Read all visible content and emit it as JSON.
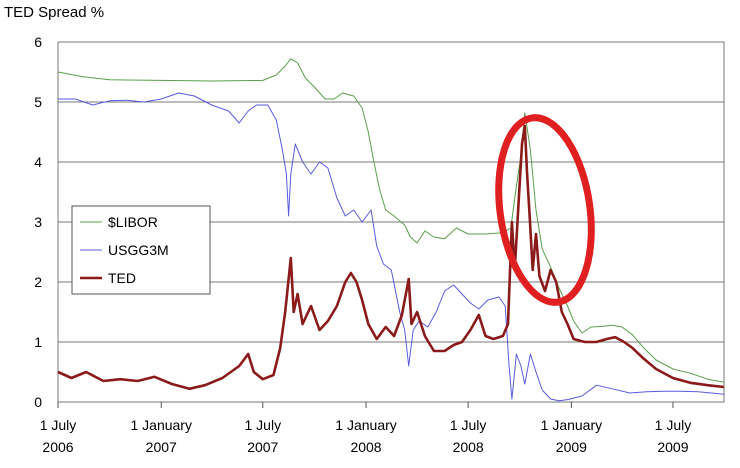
{
  "chart_data": {
    "type": "line",
    "title": "TED Spread %",
    "xlabel": "",
    "ylabel": "",
    "ylim": [
      0,
      6
    ],
    "xlim": [
      "2006-07-01",
      "2009-09-30"
    ],
    "yticks": [
      "0",
      "1",
      "2",
      "3",
      "4",
      "5",
      "6"
    ],
    "xticks": [
      {
        "date": "2006-07-01",
        "line1": "1 July",
        "line2": "2006"
      },
      {
        "date": "2007-01-01",
        "line1": "1 January",
        "line2": "2007"
      },
      {
        "date": "2007-07-01",
        "line1": "1 July",
        "line2": "2007"
      },
      {
        "date": "2008-01-01",
        "line1": "1 January",
        "line2": "2008"
      },
      {
        "date": "2008-07-01",
        "line1": "1 July",
        "line2": "2008"
      },
      {
        "date": "2009-01-01",
        "line1": "1 January",
        "line2": "2009"
      },
      {
        "date": "2009-07-01",
        "line1": "1 July",
        "line2": "2009"
      }
    ],
    "grid": true,
    "legend_position": "left",
    "series": [
      {
        "name": "$LIBOR",
        "color": "#5a9e4b",
        "points": [
          [
            "2006-07-01",
            5.5
          ],
          [
            "2006-08-15",
            5.42
          ],
          [
            "2006-10-01",
            5.37
          ],
          [
            "2007-01-01",
            5.36
          ],
          [
            "2007-04-01",
            5.35
          ],
          [
            "2007-07-01",
            5.36
          ],
          [
            "2007-07-25",
            5.45
          ],
          [
            "2007-08-10",
            5.6
          ],
          [
            "2007-08-20",
            5.72
          ],
          [
            "2007-09-01",
            5.65
          ],
          [
            "2007-09-15",
            5.4
          ],
          [
            "2007-10-01",
            5.25
          ],
          [
            "2007-10-20",
            5.05
          ],
          [
            "2007-11-05",
            5.05
          ],
          [
            "2007-11-20",
            5.15
          ],
          [
            "2007-12-10",
            5.1
          ],
          [
            "2007-12-25",
            4.9
          ],
          [
            "2008-01-05",
            4.5
          ],
          [
            "2008-01-15",
            4.0
          ],
          [
            "2008-01-25",
            3.55
          ],
          [
            "2008-02-05",
            3.2
          ],
          [
            "2008-02-20",
            3.1
          ],
          [
            "2008-03-10",
            2.95
          ],
          [
            "2008-03-20",
            2.75
          ],
          [
            "2008-04-01",
            2.65
          ],
          [
            "2008-04-15",
            2.85
          ],
          [
            "2008-05-01",
            2.75
          ],
          [
            "2008-05-20",
            2.72
          ],
          [
            "2008-06-10",
            2.9
          ],
          [
            "2008-07-01",
            2.8
          ],
          [
            "2008-08-01",
            2.8
          ],
          [
            "2008-09-01",
            2.82
          ],
          [
            "2008-09-15",
            2.9
          ],
          [
            "2008-09-25",
            3.6
          ],
          [
            "2008-10-03",
            4.1
          ],
          [
            "2008-10-10",
            4.82
          ],
          [
            "2008-10-20",
            4.2
          ],
          [
            "2008-10-30",
            3.2
          ],
          [
            "2008-11-10",
            2.55
          ],
          [
            "2008-11-25",
            2.25
          ],
          [
            "2008-12-10",
            1.9
          ],
          [
            "2008-12-25",
            1.6
          ],
          [
            "2009-01-05",
            1.35
          ],
          [
            "2009-01-20",
            1.15
          ],
          [
            "2009-02-05",
            1.25
          ],
          [
            "2009-02-25",
            1.26
          ],
          [
            "2009-03-15",
            1.28
          ],
          [
            "2009-04-01",
            1.25
          ],
          [
            "2009-04-20",
            1.12
          ],
          [
            "2009-05-10",
            0.9
          ],
          [
            "2009-06-01",
            0.7
          ],
          [
            "2009-07-01",
            0.55
          ],
          [
            "2009-08-01",
            0.48
          ],
          [
            "2009-09-01",
            0.38
          ],
          [
            "2009-09-30",
            0.33
          ]
        ]
      },
      {
        "name": "USGG3M",
        "color": "#5a5ae0",
        "points": [
          [
            "2006-07-01",
            5.05
          ],
          [
            "2006-08-01",
            5.05
          ],
          [
            "2006-09-01",
            4.95
          ],
          [
            "2006-10-01",
            5.02
          ],
          [
            "2006-11-01",
            5.03
          ],
          [
            "2006-12-01",
            5.0
          ],
          [
            "2007-01-01",
            5.05
          ],
          [
            "2007-02-01",
            5.15
          ],
          [
            "2007-03-01",
            5.1
          ],
          [
            "2007-04-01",
            4.95
          ],
          [
            "2007-05-01",
            4.85
          ],
          [
            "2007-05-20",
            4.65
          ],
          [
            "2007-06-05",
            4.85
          ],
          [
            "2007-06-20",
            4.95
          ],
          [
            "2007-07-10",
            4.95
          ],
          [
            "2007-07-25",
            4.7
          ],
          [
            "2007-08-05",
            4.2
          ],
          [
            "2007-08-12",
            3.8
          ],
          [
            "2007-08-16",
            3.1
          ],
          [
            "2007-08-20",
            3.8
          ],
          [
            "2007-08-28",
            4.3
          ],
          [
            "2007-09-10",
            4.0
          ],
          [
            "2007-09-25",
            3.8
          ],
          [
            "2007-10-10",
            4.0
          ],
          [
            "2007-10-25",
            3.9
          ],
          [
            "2007-11-10",
            3.4
          ],
          [
            "2007-11-25",
            3.1
          ],
          [
            "2007-12-10",
            3.2
          ],
          [
            "2007-12-25",
            3.0
          ],
          [
            "2008-01-10",
            3.2
          ],
          [
            "2008-01-20",
            2.6
          ],
          [
            "2008-02-01",
            2.3
          ],
          [
            "2008-02-15",
            2.2
          ],
          [
            "2008-03-01",
            1.5
          ],
          [
            "2008-03-10",
            1.2
          ],
          [
            "2008-03-17",
            0.6
          ],
          [
            "2008-03-25",
            1.2
          ],
          [
            "2008-04-05",
            1.35
          ],
          [
            "2008-04-20",
            1.25
          ],
          [
            "2008-05-05",
            1.5
          ],
          [
            "2008-05-20",
            1.85
          ],
          [
            "2008-06-05",
            1.95
          ],
          [
            "2008-06-20",
            1.8
          ],
          [
            "2008-07-05",
            1.65
          ],
          [
            "2008-07-20",
            1.55
          ],
          [
            "2008-08-05",
            1.7
          ],
          [
            "2008-08-25",
            1.75
          ],
          [
            "2008-09-05",
            1.6
          ],
          [
            "2008-09-12",
            0.6
          ],
          [
            "2008-09-17",
            0.05
          ],
          [
            "2008-09-25",
            0.8
          ],
          [
            "2008-10-03",
            0.6
          ],
          [
            "2008-10-10",
            0.3
          ],
          [
            "2008-10-20",
            0.8
          ],
          [
            "2008-10-30",
            0.5
          ],
          [
            "2008-11-10",
            0.2
          ],
          [
            "2008-11-25",
            0.05
          ],
          [
            "2008-12-10",
            0.02
          ],
          [
            "2008-12-25",
            0.04
          ],
          [
            "2009-01-20",
            0.1
          ],
          [
            "2009-02-15",
            0.28
          ],
          [
            "2009-03-15",
            0.22
          ],
          [
            "2009-04-15",
            0.15
          ],
          [
            "2009-05-15",
            0.17
          ],
          [
            "2009-06-15",
            0.18
          ],
          [
            "2009-07-15",
            0.18
          ],
          [
            "2009-08-15",
            0.17
          ],
          [
            "2009-09-30",
            0.13
          ]
        ]
      },
      {
        "name": "TED",
        "color": "#8b1a1a",
        "points": [
          [
            "2006-07-01",
            0.5
          ],
          [
            "2006-07-25",
            0.4
          ],
          [
            "2006-08-20",
            0.5
          ],
          [
            "2006-09-20",
            0.35
          ],
          [
            "2006-10-20",
            0.38
          ],
          [
            "2006-11-20",
            0.35
          ],
          [
            "2006-12-20",
            0.42
          ],
          [
            "2007-01-20",
            0.3
          ],
          [
            "2007-02-20",
            0.22
          ],
          [
            "2007-03-20",
            0.28
          ],
          [
            "2007-04-20",
            0.4
          ],
          [
            "2007-05-20",
            0.6
          ],
          [
            "2007-06-05",
            0.8
          ],
          [
            "2007-06-15",
            0.5
          ],
          [
            "2007-07-01",
            0.38
          ],
          [
            "2007-07-20",
            0.45
          ],
          [
            "2007-08-01",
            0.9
          ],
          [
            "2007-08-10",
            1.5
          ],
          [
            "2007-08-20",
            2.4
          ],
          [
            "2007-08-25",
            1.5
          ],
          [
            "2007-09-01",
            1.8
          ],
          [
            "2007-09-10",
            1.3
          ],
          [
            "2007-09-25",
            1.6
          ],
          [
            "2007-10-10",
            1.2
          ],
          [
            "2007-10-25",
            1.35
          ],
          [
            "2007-11-10",
            1.6
          ],
          [
            "2007-11-25",
            2.0
          ],
          [
            "2007-12-05",
            2.15
          ],
          [
            "2007-12-15",
            2.0
          ],
          [
            "2007-12-25",
            1.7
          ],
          [
            "2008-01-05",
            1.3
          ],
          [
            "2008-01-20",
            1.05
          ],
          [
            "2008-02-05",
            1.25
          ],
          [
            "2008-02-20",
            1.1
          ],
          [
            "2008-03-05",
            1.45
          ],
          [
            "2008-03-17",
            2.05
          ],
          [
            "2008-03-22",
            1.3
          ],
          [
            "2008-04-01",
            1.5
          ],
          [
            "2008-04-15",
            1.1
          ],
          [
            "2008-05-01",
            0.85
          ],
          [
            "2008-05-20",
            0.85
          ],
          [
            "2008-06-05",
            0.95
          ],
          [
            "2008-06-20",
            1.0
          ],
          [
            "2008-07-05",
            1.2
          ],
          [
            "2008-07-20",
            1.45
          ],
          [
            "2008-08-01",
            1.1
          ],
          [
            "2008-08-15",
            1.05
          ],
          [
            "2008-09-01",
            1.1
          ],
          [
            "2008-09-10",
            1.3
          ],
          [
            "2008-09-17",
            3.0
          ],
          [
            "2008-09-22",
            2.2
          ],
          [
            "2008-09-30",
            3.5
          ],
          [
            "2008-10-05",
            4.3
          ],
          [
            "2008-10-10",
            4.6
          ],
          [
            "2008-10-14",
            3.8
          ],
          [
            "2008-10-18",
            3.2
          ],
          [
            "2008-10-24",
            2.2
          ],
          [
            "2008-10-30",
            2.8
          ],
          [
            "2008-11-05",
            2.1
          ],
          [
            "2008-11-15",
            1.85
          ],
          [
            "2008-11-25",
            2.2
          ],
          [
            "2008-12-05",
            2.0
          ],
          [
            "2008-12-15",
            1.5
          ],
          [
            "2008-12-25",
            1.3
          ],
          [
            "2009-01-05",
            1.05
          ],
          [
            "2009-01-25",
            1.0
          ],
          [
            "2009-02-15",
            1.0
          ],
          [
            "2009-03-05",
            1.05
          ],
          [
            "2009-03-20",
            1.08
          ],
          [
            "2009-04-05",
            1.0
          ],
          [
            "2009-04-20",
            0.9
          ],
          [
            "2009-05-10",
            0.72
          ],
          [
            "2009-06-01",
            0.55
          ],
          [
            "2009-07-01",
            0.4
          ],
          [
            "2009-08-01",
            0.32
          ],
          [
            "2009-09-01",
            0.28
          ],
          [
            "2009-09-30",
            0.25
          ]
        ]
      }
    ],
    "annotation": {
      "type": "ellipse",
      "color": "#e02020",
      "center_date": "2008-11-15",
      "center_value": 3.2,
      "rx_days": 80,
      "ry_value": 1.55
    }
  }
}
